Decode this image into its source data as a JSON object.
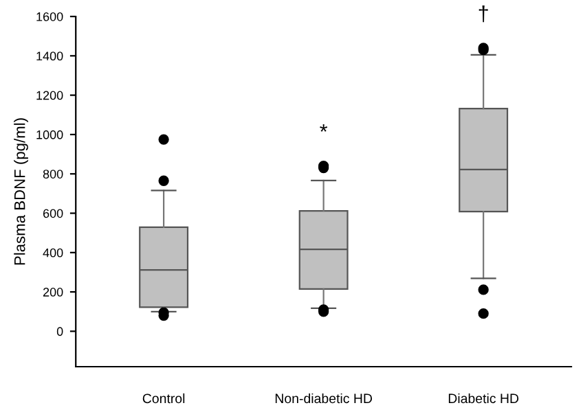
{
  "chart_data": {
    "type": "box",
    "ylabel": "Plasma BDNF (pg/ml)",
    "categories": [
      "Control",
      "Non-diabetic HD",
      "Diabetic HD"
    ],
    "boxes": [
      {
        "low": 100,
        "q1": 122,
        "median": 312,
        "q3": 529,
        "high": 716,
        "outliers": [
          975,
          765,
          95,
          80
        ]
      },
      {
        "low": 117,
        "q1": 215,
        "median": 416,
        "q3": 612,
        "high": 766,
        "outliers": [
          840,
          830,
          110,
          100
        ]
      },
      {
        "low": 269,
        "q1": 608,
        "median": 822,
        "q3": 1132,
        "high": 1405,
        "outliers": [
          1440,
          1430,
          211,
          90
        ]
      }
    ],
    "color": "#c0c0c0",
    "ylim": [
      -180,
      1600
    ],
    "yticks": [
      0,
      200,
      400,
      600,
      800,
      1000,
      1200,
      1400,
      1600
    ],
    "annotations": [
      "*",
      "†"
    ],
    "grid": false
  }
}
